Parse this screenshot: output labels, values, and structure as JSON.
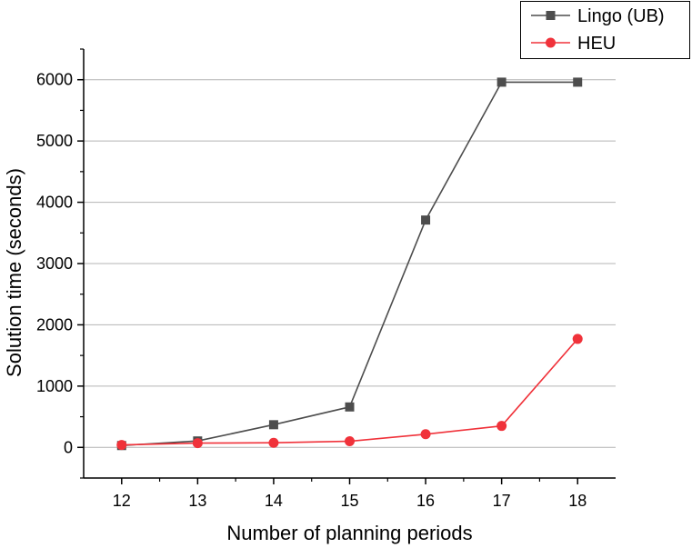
{
  "chart_data": {
    "type": "line",
    "title": "",
    "xlabel": "Number of planning periods",
    "ylabel": "Solution time (seconds)",
    "categories": [
      12,
      13,
      14,
      15,
      16,
      17,
      18
    ],
    "xlim": [
      11.5,
      18.5
    ],
    "ylim": [
      -500,
      6500
    ],
    "yticks": [
      0,
      1000,
      2000,
      3000,
      4000,
      5000,
      6000
    ],
    "grid": "horizontal",
    "legend_position": "top-right",
    "series": [
      {
        "name": "Lingo (UB)",
        "marker": "square",
        "color": "#4d4d4d",
        "values": [
          30,
          105,
          370,
          660,
          3710,
          5960,
          5960
        ]
      },
      {
        "name": "HEU",
        "marker": "circle",
        "color": "#f0323a",
        "values": [
          40,
          70,
          75,
          100,
          215,
          350,
          1770
        ]
      }
    ]
  }
}
